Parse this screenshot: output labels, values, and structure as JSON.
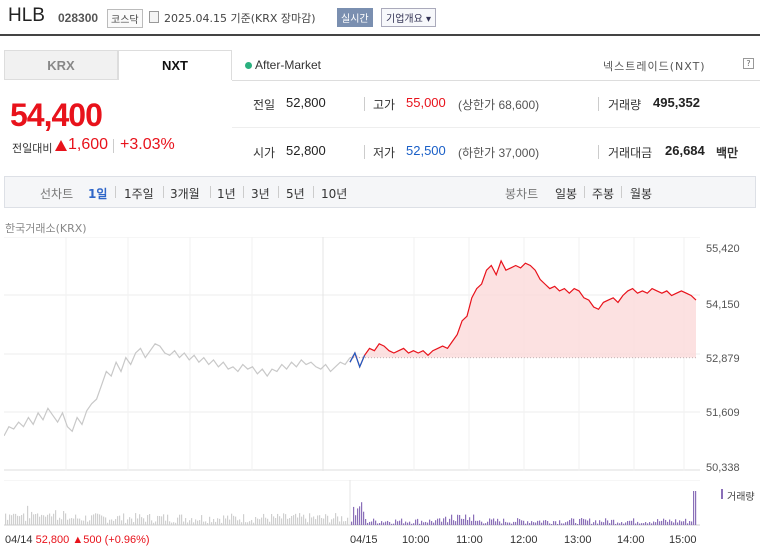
{
  "header": {
    "stock_name": "HLB",
    "stock_code": "028300",
    "market": "코스닥",
    "date_text": "2025.04.15 기준(KRX 장마감)",
    "realtime_label": "실시간",
    "company_label": "기업개요 ▾"
  },
  "tabs": {
    "krx": "KRX",
    "nxt": "NXT"
  },
  "session": {
    "after_market": "After-Market",
    "exchange": "넥스트레이드(NXT)",
    "help": "?"
  },
  "quote": {
    "price": "54,400",
    "change_label": "전일대비",
    "change_value": "1,600",
    "change_pct": "+3.03%",
    "direction": "up"
  },
  "stats": {
    "prev_close_label": "전일",
    "prev_close": "52,800",
    "high_label": "고가",
    "high": "55,000",
    "upper_limit": "(상한가 68,600)",
    "volume_label": "거래량",
    "volume": "495,352",
    "open_label": "시가",
    "open": "52,800",
    "low_label": "저가",
    "low": "52,500",
    "lower_limit": "(하한가 37,000)",
    "value_label": "거래대금",
    "value": "26,684",
    "value_unit": "백만"
  },
  "period": {
    "line_label": "선차트",
    "line_items": [
      "1일",
      "1주일",
      "3개월",
      "1년",
      "3년",
      "5년",
      "10년"
    ],
    "selected": "1일",
    "candle_label": "봉차트",
    "candle_items": [
      "일봉",
      "주봉",
      "월봉"
    ]
  },
  "chart_section": {
    "exchange_label": "한국거래소(KRX)",
    "volume_label": "거래량"
  },
  "colors": {
    "up": "#e8121b",
    "down": "#1a5fc7",
    "prev_day": "#c8c8c8",
    "volume": "#8a6fb8"
  },
  "chart_data": {
    "type": "line",
    "y_ticks": [
      "55,420",
      "54,150",
      "52,879",
      "51,609",
      "50,338"
    ],
    "ylim": [
      50338,
      55420
    ],
    "reference_line": 52800,
    "x_ticks": [
      "04/15",
      "10:00",
      "11:00",
      "12:00",
      "13:00",
      "14:00",
      "15:00"
    ],
    "prev_day_info": {
      "date": "04/14",
      "price": "52,800",
      "change": "500",
      "pct": "(+0.96%)"
    },
    "series": [
      {
        "values": [
          51100,
          51300,
          51250,
          51400,
          51300,
          51500,
          51350,
          51600,
          51450,
          51700,
          51550,
          51400,
          51600,
          51300,
          51200,
          51500,
          51350,
          51650,
          51800,
          51900,
          52200,
          52500,
          52400,
          52700,
          52500,
          52800,
          52650,
          52900,
          53000,
          52800,
          52950,
          53100,
          53050,
          52900,
          52850,
          52950,
          52800,
          52900,
          52750,
          52850,
          52700,
          52800,
          52650,
          52750,
          52600,
          52700,
          52550,
          52600,
          52500,
          52650,
          52550,
          52600,
          52450,
          52550,
          52400,
          52550,
          52500,
          52650,
          52550,
          52700,
          52600,
          52750,
          52650,
          52700,
          52600,
          52550,
          52650,
          52500,
          52600,
          52700,
          52650,
          52800
        ]
      },
      {
        "values": [
          52700,
          52900,
          52600,
          52850,
          53000,
          52950,
          53100,
          53050,
          52950,
          52900,
          52950,
          53000,
          52900,
          52950,
          52900,
          52950,
          52850,
          52950,
          53000,
          53050,
          53000,
          53150,
          53300,
          53600,
          53700,
          54100,
          54300,
          54400,
          54700,
          54800,
          54600,
          54900,
          54700,
          54750,
          54800,
          54750,
          54850,
          54800,
          54700,
          54500,
          54400,
          54300,
          54350,
          54250,
          54300,
          54200,
          54300,
          54250,
          54100,
          54050,
          53900,
          53850,
          54000,
          54050,
          54100,
          54000,
          54150,
          54250,
          54300,
          54200,
          54250,
          54200,
          54300,
          54250,
          54200,
          54250,
          54150,
          54200,
          54250,
          54200,
          54150,
          54050
        ]
      }
    ]
  }
}
